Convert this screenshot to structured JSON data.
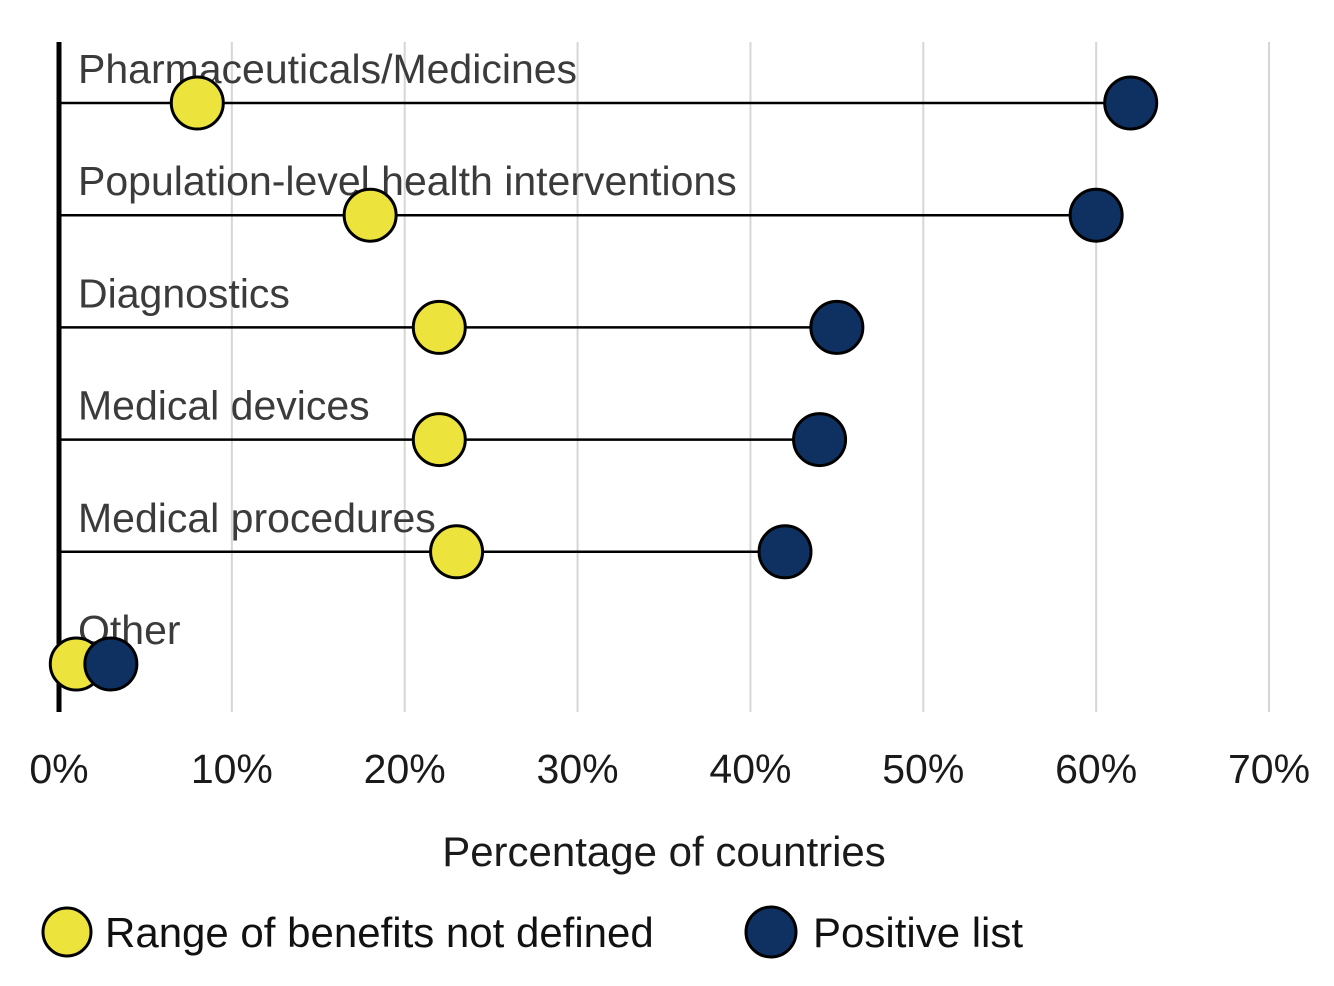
{
  "chart_data": {
    "type": "scatter",
    "subtype": "dumbbell",
    "categories": [
      "Pharmaceuticals/Medicines",
      "Population-level health interventions",
      "Diagnostics",
      "Medical devices",
      "Medical procedures",
      "Other"
    ],
    "series": [
      {
        "name": "Range of benefits not defined",
        "color": "#ece43c",
        "values": [
          8,
          18,
          22,
          22,
          23,
          1
        ]
      },
      {
        "name": "Positive list",
        "color": "#0e3161",
        "values": [
          62,
          60,
          45,
          44,
          42,
          3
        ]
      }
    ],
    "title": "",
    "xlabel": "Percentage of countries",
    "ylabel": "",
    "xlim": [
      0,
      70
    ],
    "x_tick_values": [
      0,
      10,
      20,
      30,
      40,
      50,
      60,
      70
    ],
    "x_tick_labels": [
      "0%",
      "10%",
      "20%",
      "30%",
      "40%",
      "50%",
      "60%",
      "70%"
    ],
    "grid": "vertical-only",
    "legend_position": "bottom"
  },
  "legend": {
    "items": [
      {
        "label": "Range of benefits not defined",
        "color": "#ece43c"
      },
      {
        "label": "Positive list",
        "color": "#0e3161"
      }
    ]
  },
  "colors": {
    "dot_yellow": "#ece43c",
    "dot_navy": "#0e3161",
    "dot_outline": "#000000",
    "gridline": "#d6d6d6",
    "axis_line": "#000000",
    "connector_line": "#000000",
    "category_label": "#3b3b3b",
    "tick_label": "#1a1a1a",
    "background": "#ffffff"
  }
}
